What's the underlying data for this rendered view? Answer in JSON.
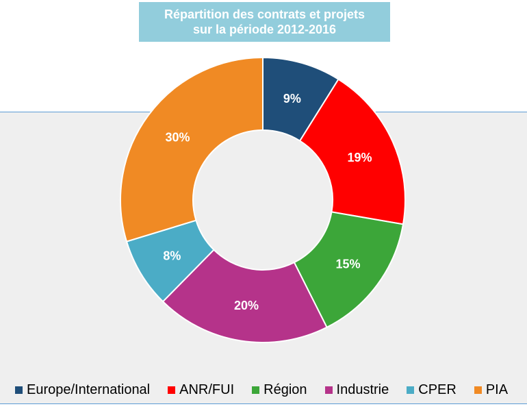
{
  "title": {
    "line1": "Répartition des contrats et projets",
    "line2": "sur la période 2012-2016"
  },
  "chart_data": {
    "type": "pie",
    "variant": "donut",
    "categories": [
      "Europe/International",
      "ANR/FUI",
      "Région",
      "Industrie",
      "CPER",
      "PIA"
    ],
    "values": [
      9,
      19,
      15,
      20,
      8,
      30
    ],
    "labels": [
      "9%",
      "19%",
      "15%",
      "20%",
      "8%",
      "30%"
    ],
    "colors": [
      "#1f4e79",
      "#ff0000",
      "#3ca639",
      "#b5338a",
      "#4bacc6",
      "#f08a24"
    ],
    "legend_position": "bottom",
    "title": "Répartition des contrats et projets sur la période 2012-2016"
  }
}
